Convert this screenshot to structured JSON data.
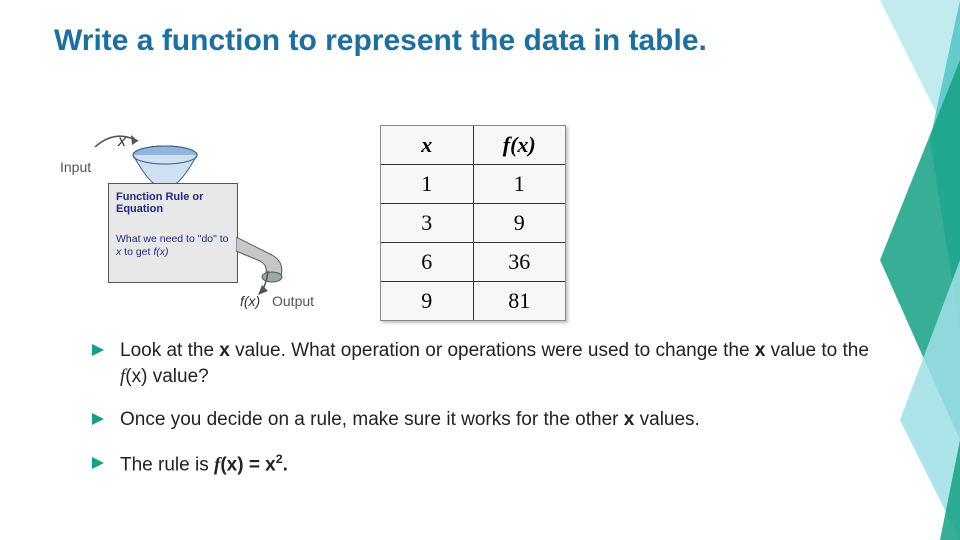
{
  "colors": {
    "title": "#1f6f9e",
    "accent": "#15a085",
    "accent_light": "#9fdfe6",
    "accent_mid": "#53c4c7",
    "box_bg": "#e8e8e8",
    "box_text": "#1f2c80",
    "text": "#222222",
    "muted": "#555555",
    "table_border": "#333333",
    "table_bg": "#f7f7f7"
  },
  "title": "Write a function to represent the data in table.",
  "machine": {
    "input_label": "Input",
    "x_label": "x",
    "box_line1": "Function Rule or Equation",
    "box_line2_pre": "What we need to \"do\" to ",
    "box_line2_x": "x",
    "box_line2_mid": " to get ",
    "box_line2_fx": "f(x)",
    "fx_label": "f(x)",
    "output_label": "Output"
  },
  "table": {
    "header_x": "x",
    "header_fx": "f(x)",
    "rows": [
      {
        "x": "1",
        "fx": "1"
      },
      {
        "x": "3",
        "fx": "9"
      },
      {
        "x": "6",
        "fx": "36"
      },
      {
        "x": "9",
        "fx": "81"
      }
    ]
  },
  "bullets": [
    {
      "segments": [
        {
          "t": "Look at the "
        },
        {
          "t": "x",
          "bold": true
        },
        {
          "t": " value.  What operation or operations were used to change the "
        },
        {
          "t": "x",
          "bold": true
        },
        {
          "t": " value to the "
        },
        {
          "t": "f",
          "ital": true
        },
        {
          "t": "(x) value?"
        }
      ]
    },
    {
      "segments": [
        {
          "t": "Once you decide on a rule, make sure it works for the other "
        },
        {
          "t": "x",
          "bold": true
        },
        {
          "t": " values."
        }
      ]
    },
    {
      "segments": [
        {
          "t": "The rule is "
        },
        {
          "t": "f",
          "bold": true,
          "ital": true
        },
        {
          "t": "(x) = x",
          "bold": true
        },
        {
          "t": "2",
          "bold": true,
          "sup": true
        },
        {
          "t": ".",
          "bold": true
        }
      ]
    }
  ]
}
